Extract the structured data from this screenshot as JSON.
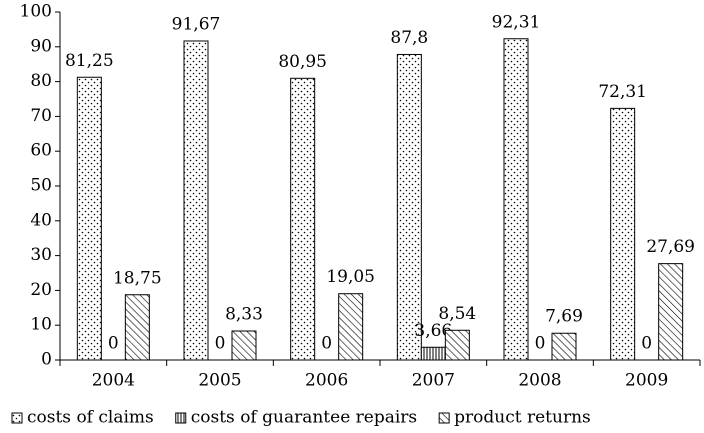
{
  "chart_data": {
    "type": "bar",
    "categories": [
      "2004",
      "2005",
      "2006",
      "2007",
      "2008",
      "2009"
    ],
    "series": [
      {
        "name": "costs of claims",
        "color": "#000000",
        "pattern": "dots",
        "values": [
          81.25,
          91.67,
          80.95,
          87.8,
          92.31,
          72.31
        ],
        "value_labels": [
          "81,25",
          "91,67",
          "80,95",
          "87,8",
          "92,31",
          "72,31"
        ]
      },
      {
        "name": "costs of guarantee repairs",
        "color": "#000000",
        "pattern": "vertical",
        "values": [
          0,
          0,
          0,
          3.66,
          0,
          0
        ],
        "value_labels": [
          "0",
          "0",
          "0",
          "3,66",
          "0",
          "0"
        ]
      },
      {
        "name": "product returns",
        "color": "#000000",
        "pattern": "diagonal",
        "values": [
          18.75,
          8.33,
          19.05,
          8.54,
          7.69,
          27.69
        ],
        "value_labels": [
          "18,75",
          "8,33",
          "19,05",
          "8,54",
          "7,69",
          "27,69"
        ]
      }
    ],
    "ylim": [
      0,
      100
    ],
    "yticks": [
      0,
      10,
      20,
      30,
      40,
      50,
      60,
      70,
      80,
      90,
      100
    ],
    "grid": false,
    "legend": "bottom"
  }
}
